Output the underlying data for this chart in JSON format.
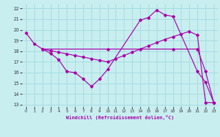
{
  "xlabel": "Windchill (Refroidissement éolien,°C)",
  "line_color": "#aa00aa",
  "bg_color": "#c8eef0",
  "grid_color": "#a0d8dc",
  "xlim": [
    -0.5,
    23.5
  ],
  "ylim": [
    12.8,
    22.4
  ],
  "yticks": [
    13,
    14,
    15,
    16,
    17,
    18,
    19,
    20,
    21,
    22
  ],
  "xticks": [
    0,
    1,
    2,
    3,
    4,
    5,
    6,
    7,
    8,
    9,
    10,
    11,
    12,
    13,
    14,
    15,
    16,
    17,
    18,
    19,
    20,
    21,
    22,
    23
  ],
  "line1_x": [
    0,
    1,
    2,
    3,
    4,
    5,
    6,
    7,
    8,
    9,
    10,
    14,
    15,
    16,
    17,
    18,
    21,
    22,
    23
  ],
  "line1_y": [
    19.7,
    18.7,
    18.2,
    17.8,
    17.2,
    16.1,
    16.0,
    15.4,
    14.7,
    15.4,
    16.3,
    20.9,
    21.15,
    21.85,
    21.4,
    21.25,
    16.1,
    15.1,
    13.2
  ],
  "line2_x": [
    2,
    10,
    18,
    21,
    22,
    23
  ],
  "line2_y": [
    18.2,
    18.2,
    18.2,
    18.2,
    16.1,
    13.2
  ],
  "line3_x": [
    2,
    3,
    4,
    5,
    6,
    7,
    8,
    9,
    10,
    11,
    12,
    13,
    14,
    15,
    16,
    17,
    18,
    19,
    20,
    21,
    22,
    23
  ],
  "line3_y": [
    18.2,
    18.05,
    17.9,
    17.75,
    17.6,
    17.45,
    17.3,
    17.15,
    17.0,
    17.3,
    17.6,
    17.9,
    18.2,
    18.5,
    18.8,
    19.1,
    19.35,
    19.6,
    19.85,
    19.5,
    13.2,
    13.2
  ]
}
